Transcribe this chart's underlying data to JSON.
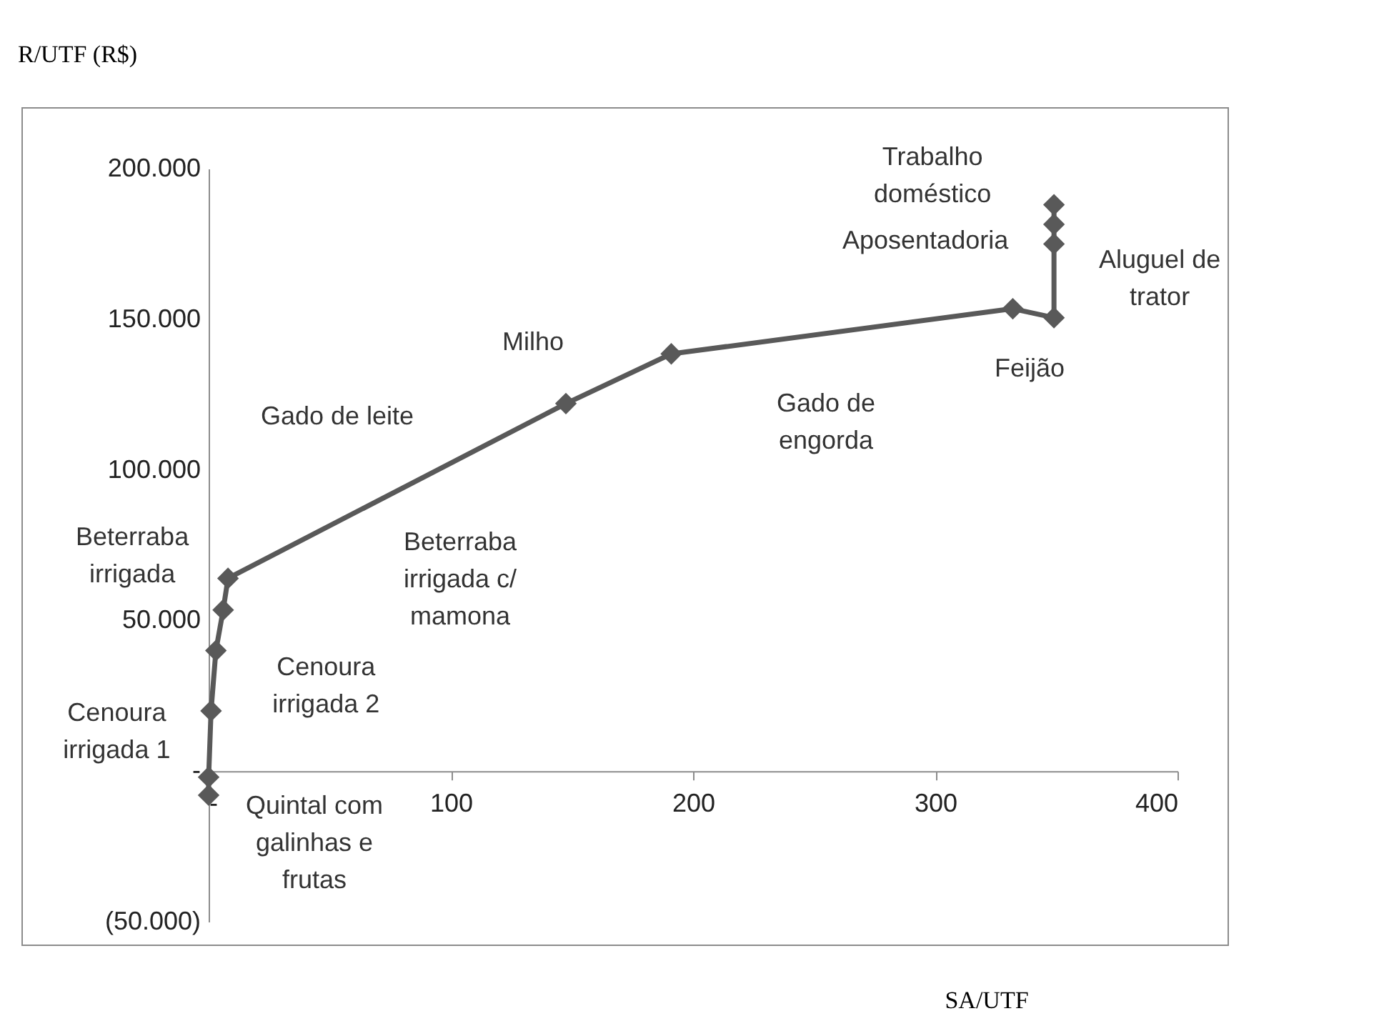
{
  "chart_data": {
    "type": "line",
    "xlabel": "SA/UTF",
    "ylabel": "R/UTF (R$)",
    "color": "#595959",
    "marker": "diamond",
    "x": [
      0,
      0,
      1,
      3,
      6,
      8,
      147.5,
      191,
      332,
      349,
      349,
      349,
      349
    ],
    "values": [
      -8000,
      -2000,
      20000,
      40000,
      53500,
      64000,
      122000,
      138500,
      153500,
      150500,
      175000,
      181500,
      188000
    ],
    "xlim": [
      0,
      400
    ],
    "ylim": [
      -50000,
      200000
    ],
    "xticks": [
      {
        "value": 0,
        "label": "-"
      },
      100,
      200,
      300,
      400
    ],
    "yticks": [
      {
        "value": -50000,
        "label": "(50.000)"
      },
      {
        "value": 0,
        "label": "-"
      },
      {
        "value": 50000,
        "label": "50.000"
      },
      {
        "value": 100000,
        "label": "100.000"
      },
      {
        "value": 150000,
        "label": "150.000"
      },
      {
        "value": 200000,
        "label": "200.000"
      }
    ],
    "annotations": [
      {
        "text": "Quintal com galinhas e frutas",
        "x": 0,
        "y": -8000
      },
      {
        "text": "Cenoura irrigada 1",
        "x": 1,
        "y": 20000
      },
      {
        "text": "Cenoura irrigada 2",
        "x": 3,
        "y": 40000
      },
      {
        "text": "Beterraba irrigada",
        "x": 8,
        "y": 64000
      },
      "Beterraba irrigada c/ mamona",
      "Gado de leite",
      "Milho",
      "Gado de engorda",
      {
        "text": "Feijão",
        "x": 349,
        "y": 150500
      },
      {
        "text": "Trabalho doméstico",
        "x": 349,
        "y": 188000
      },
      {
        "text": "Aposentadoria",
        "x": 349,
        "y": 181500
      },
      {
        "text": "Aluguel de trator",
        "x": 349,
        "y": 175000
      }
    ]
  }
}
